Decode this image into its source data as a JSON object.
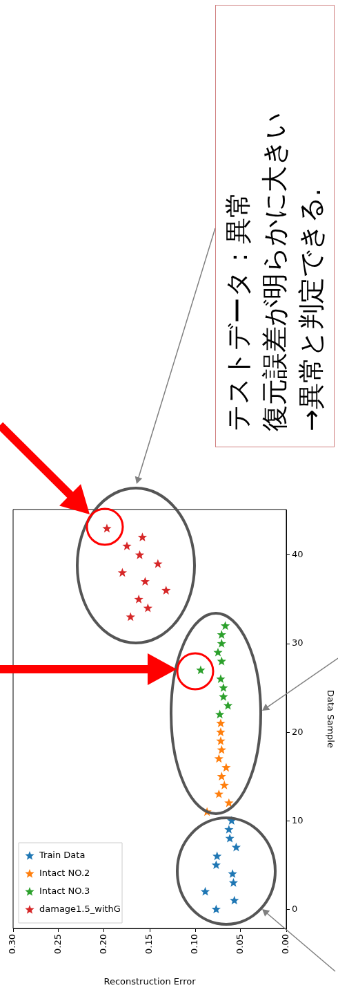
{
  "chart_data": {
    "type": "scatter",
    "xlabel": "Reconstruction Error",
    "ylabel": "Data Sample",
    "xlim": [
      0.3,
      0
    ],
    "ylim": [
      -2.15,
      45.15
    ],
    "xticks": [
      {
        "value": 0.3,
        "label": "0.30"
      },
      {
        "value": 0.25,
        "label": "0.25"
      },
      {
        "value": 0.2,
        "label": "0.20"
      },
      {
        "value": 0.15,
        "label": "0.15"
      },
      {
        "value": 0.1,
        "label": "0.10"
      },
      {
        "value": 0.05,
        "label": "0.05"
      },
      {
        "value": 0,
        "label": "0.00"
      }
    ],
    "yticks": [
      0,
      10,
      20,
      30,
      40
    ],
    "grid": false,
    "legend": "bottom left",
    "marker": "star",
    "annotations": [
      "テストデータ：異常",
      "復元誤差が明らかに大きい",
      "→異常と判定できる."
    ],
    "series": [
      {
        "name": "Train Data",
        "color": "#1f77b4",
        "values": [
          0,
          1,
          2,
          3,
          4,
          5,
          6,
          7,
          8,
          9,
          10
        ],
        "x": [
          0.077,
          0.057,
          0.089,
          0.058,
          0.059,
          0.077,
          0.076,
          0.055,
          0.062,
          0.063,
          0.06
        ]
      },
      {
        "name": "Intact NO.2",
        "color": "#ff7f0e",
        "values": [
          11,
          12,
          13,
          14,
          15,
          16,
          17,
          18,
          19,
          20,
          21
        ],
        "x": [
          0.087,
          0.063,
          0.074,
          0.068,
          0.071,
          0.066,
          0.074,
          0.071,
          0.072,
          0.072,
          0.072
        ]
      },
      {
        "name": "Intact NO.3",
        "color": "#2ca02c",
        "values": [
          22,
          23,
          24,
          25,
          26,
          27,
          28,
          29,
          30,
          31,
          32
        ],
        "x": [
          0.073,
          0.064,
          0.069,
          0.069,
          0.072,
          0.094,
          0.071,
          0.075,
          0.071,
          0.071,
          0.067
        ]
      },
      {
        "name": "damage1.5_withG",
        "color": "#d62728",
        "values": [
          33,
          34,
          35,
          36,
          37,
          38,
          39,
          40,
          41,
          42,
          43
        ],
        "x": [
          0.171,
          0.152,
          0.162,
          0.132,
          0.155,
          0.18,
          0.141,
          0.161,
          0.175,
          0.158,
          0.197
        ]
      }
    ]
  }
}
